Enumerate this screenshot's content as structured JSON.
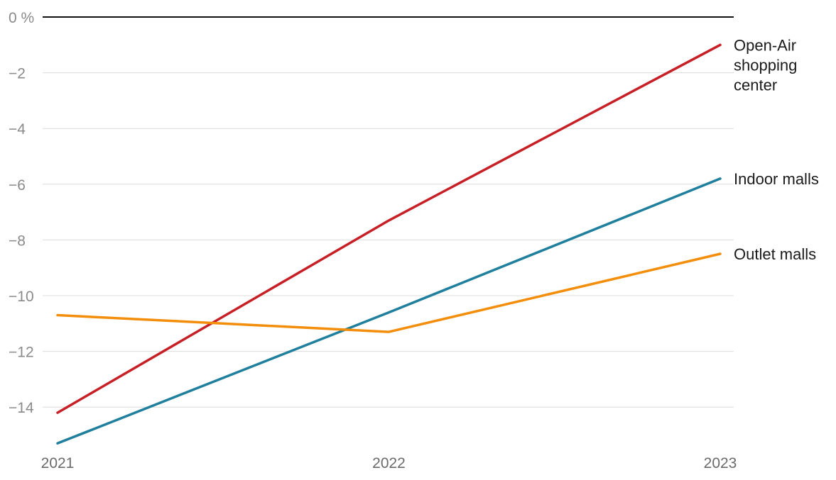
{
  "chart_data": {
    "type": "line",
    "title": "",
    "xlabel": "",
    "ylabel": "",
    "x": [
      "2021",
      "2022",
      "2023"
    ],
    "ylim": [
      -15.3,
      0
    ],
    "yticks": [
      0,
      -2,
      -4,
      -6,
      -8,
      -10,
      -12,
      -14
    ],
    "ytick_labels": [
      "0 %",
      "−2",
      "−4",
      "−6",
      "−8",
      "−10",
      "−12",
      "−14"
    ],
    "grid": true,
    "legend": "direct labels at line ends (right)",
    "series": [
      {
        "name": "Open-Air shopping center",
        "label_lines": [
          "Open-Air",
          "shopping",
          "center"
        ],
        "color": "#c62026",
        "values": [
          -14.2,
          -7.3,
          -1.0
        ]
      },
      {
        "name": "Indoor malls",
        "label_lines": [
          "Indoor malls"
        ],
        "color": "#1f7f9c",
        "values": [
          -15.3,
          -10.6,
          -5.8
        ]
      },
      {
        "name": "Outlet malls",
        "label_lines": [
          "Outlet malls"
        ],
        "color": "#f28e0c",
        "values": [
          -10.7,
          -11.3,
          -8.5
        ]
      }
    ]
  }
}
